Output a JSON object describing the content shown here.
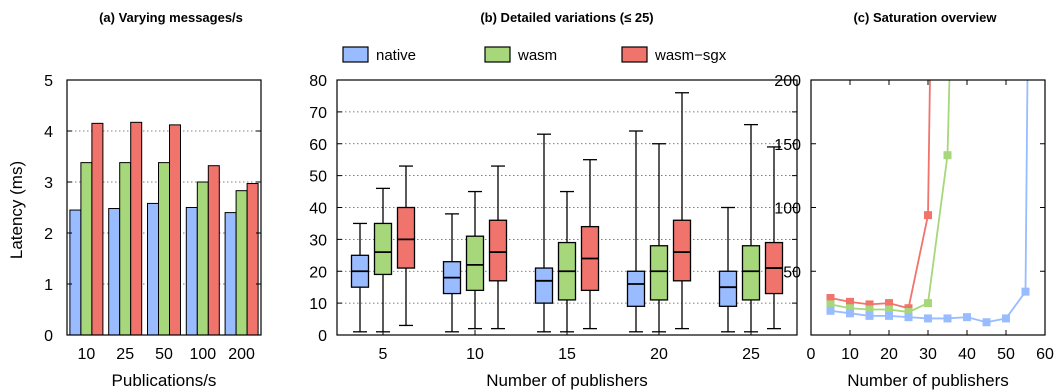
{
  "chart_data": [
    {
      "type": "bar",
      "title": "(a) Varying messages/s",
      "xlabel": "Publications/s",
      "ylabel": "Latency (ms)",
      "ylim": [
        0,
        5
      ],
      "yticks": [
        "0",
        "1",
        "2",
        "3",
        "4",
        "5"
      ],
      "categories": [
        "10",
        "25",
        "50",
        "100",
        "200"
      ],
      "series": [
        {
          "name": "native",
          "values": [
            2.45,
            2.48,
            2.58,
            2.5,
            2.4
          ]
        },
        {
          "name": "wasm",
          "values": [
            3.38,
            3.38,
            3.38,
            3.0,
            2.83
          ]
        },
        {
          "name": "wasm-sgx",
          "values": [
            4.15,
            4.17,
            4.12,
            3.32,
            2.97
          ]
        }
      ],
      "grid": "horizontal dotted"
    },
    {
      "type": "box",
      "title": "(b) Detailed variations (≤ 25)",
      "xlabel": "Number of publishers",
      "ylabel": "",
      "ylim": [
        0,
        80
      ],
      "yticks": [
        "0",
        "10",
        "20",
        "30",
        "40",
        "50",
        "60",
        "70",
        "80"
      ],
      "categories": [
        "5",
        "10",
        "15",
        "20",
        "25"
      ],
      "legend": [
        "native",
        "wasm",
        "wasm−sgx"
      ],
      "legend_position": "top",
      "series": [
        {
          "name": "native",
          "boxes": [
            {
              "min": 1,
              "q1": 15,
              "median": 20,
              "q3": 25,
              "max": 35
            },
            {
              "min": 1,
              "q1": 13,
              "median": 18,
              "q3": 23,
              "max": 38
            },
            {
              "min": 1,
              "q1": 10,
              "median": 17,
              "q3": 21,
              "max": 63
            },
            {
              "min": 1,
              "q1": 9,
              "median": 16,
              "q3": 20,
              "max": 64
            },
            {
              "min": 1,
              "q1": 9,
              "median": 15,
              "q3": 20,
              "max": 40
            }
          ]
        },
        {
          "name": "wasm",
          "boxes": [
            {
              "min": 1,
              "q1": 19,
              "median": 26,
              "q3": 35,
              "max": 46
            },
            {
              "min": 2,
              "q1": 14,
              "median": 22,
              "q3": 31,
              "max": 45
            },
            {
              "min": 1,
              "q1": 11,
              "median": 20,
              "q3": 29,
              "max": 45
            },
            {
              "min": 1,
              "q1": 11,
              "median": 20,
              "q3": 28,
              "max": 60
            },
            {
              "min": 1,
              "q1": 11,
              "median": 20,
              "q3": 28,
              "max": 66
            }
          ]
        },
        {
          "name": "wasm-sgx",
          "boxes": [
            {
              "min": 3,
              "q1": 21,
              "median": 30,
              "q3": 40,
              "max": 53
            },
            {
              "min": 2,
              "q1": 17,
              "median": 26,
              "q3": 36,
              "max": 53
            },
            {
              "min": 2,
              "q1": 14,
              "median": 24,
              "q3": 34,
              "max": 55
            },
            {
              "min": 2,
              "q1": 17,
              "median": 26,
              "q3": 36,
              "max": 76
            },
            {
              "min": 2,
              "q1": 13,
              "median": 21,
              "q3": 29,
              "max": 59
            }
          ]
        }
      ],
      "grid": "horizontal dotted"
    },
    {
      "type": "line",
      "title": "(c) Saturation overview",
      "xlabel": "Number of publishers",
      "ylabel": "",
      "xlim": [
        0,
        60
      ],
      "ylim": [
        0,
        200
      ],
      "xticks": [
        "0",
        "10",
        "20",
        "30",
        "40",
        "50",
        "60"
      ],
      "yticks": [
        "50",
        "100",
        "150",
        "200"
      ],
      "series": [
        {
          "name": "native",
          "x": [
            5,
            10,
            15,
            20,
            25,
            30,
            35,
            40,
            45,
            50,
            55,
            55.5
          ],
          "y": [
            19,
            17,
            15,
            15,
            14,
            13,
            13,
            14,
            10,
            13,
            34,
            200
          ]
        },
        {
          "name": "wasm",
          "x": [
            5,
            10,
            15,
            20,
            25,
            30,
            35,
            35.5
          ],
          "y": [
            24,
            21,
            20,
            20,
            18,
            25,
            141,
            200
          ]
        },
        {
          "name": "wasm-sgx",
          "x": [
            5,
            10,
            15,
            20,
            25,
            30,
            30.5
          ],
          "y": [
            29,
            26,
            24,
            25,
            21,
            94,
            200
          ]
        }
      ],
      "grid": "none"
    }
  ],
  "colors": {
    "native_fill": "#99bbff",
    "wasm_fill": "#a6d77a",
    "wasm_sgx_fill": "#f0736c",
    "native_line": "#99bbff",
    "wasm_line": "#a6d77a",
    "wasm_sgx_line": "#f0736c"
  }
}
